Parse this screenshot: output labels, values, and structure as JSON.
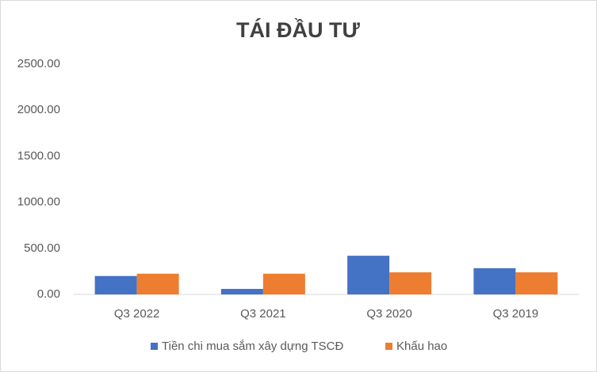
{
  "chart_data": {
    "type": "bar",
    "title": "TÁI ĐẦU TƯ",
    "categories": [
      "Q3 2022",
      "Q3 2021",
      "Q3 2020",
      "Q3 2019"
    ],
    "series": [
      {
        "name": "Tiền chi mua sắm xây dựng TSCĐ",
        "color": "#4472c4",
        "values": [
          200,
          60,
          420,
          285
        ]
      },
      {
        "name": "Khấu hao",
        "color": "#ed7d31",
        "values": [
          225,
          225,
          240,
          240
        ]
      }
    ],
    "ylim": [
      0,
      2500
    ],
    "yticks": [
      {
        "value": 0,
        "label": "0.00"
      },
      {
        "value": 500,
        "label": "500.00"
      },
      {
        "value": 1000,
        "label": "1000.00"
      },
      {
        "value": 1500,
        "label": "1500.00"
      },
      {
        "value": 2000,
        "label": "2000.00"
      },
      {
        "value": 2500,
        "label": "2500.00"
      }
    ],
    "grid": false,
    "legend": "bottom"
  }
}
